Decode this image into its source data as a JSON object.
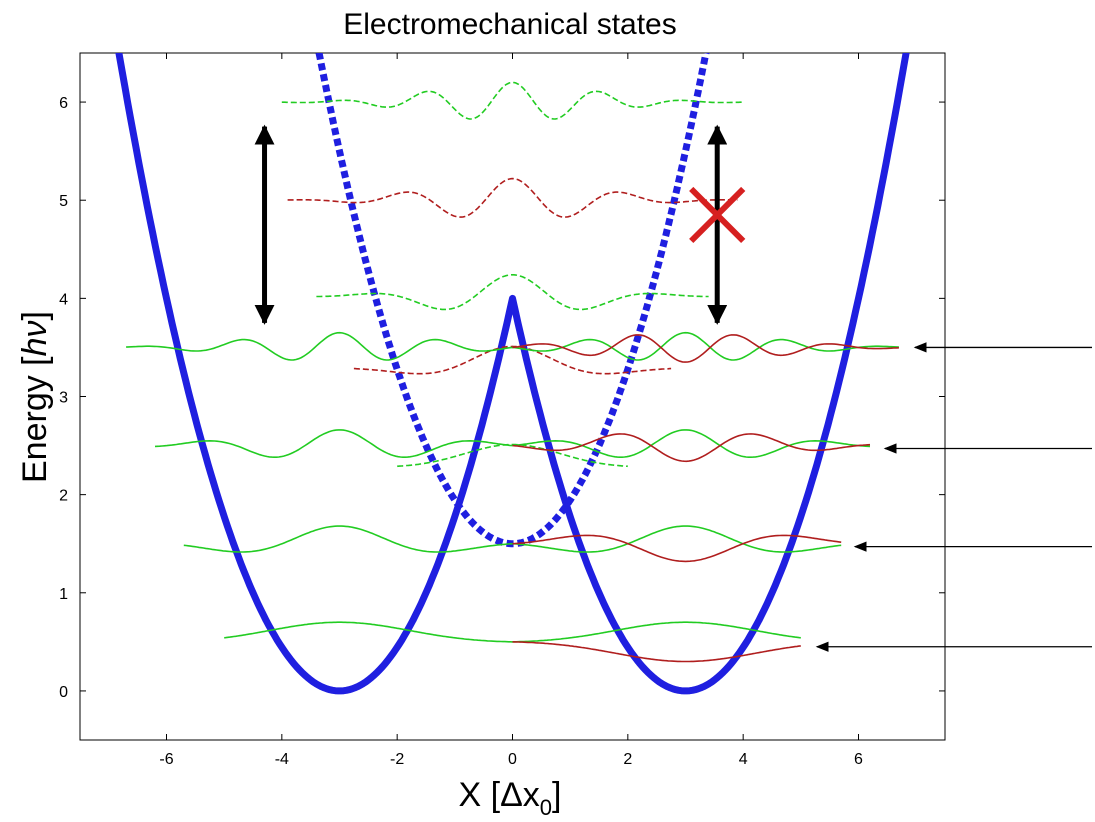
{
  "chart_data": {
    "type": "line",
    "title": "Electromechanical states",
    "xlabel": "X [Δx",
    "xlabel_sub": "0",
    "xlabel_end": "]",
    "ylabel": "Energy [",
    "ylabel_italic": "hν",
    "ylabel_end": "]",
    "xlim": [
      -7.5,
      7.5
    ],
    "ylim": [
      -0.5,
      6.5
    ],
    "x_ticks": [
      -6,
      -4,
      -2,
      0,
      2,
      4,
      6
    ],
    "y_ticks": [
      0,
      1,
      2,
      3,
      4,
      5,
      6
    ],
    "grid": false,
    "colors": {
      "potential": "#1f1fe0",
      "wave_green": "#22cc22",
      "wave_red": "#b01e1e",
      "cross": "#d62020",
      "arrow": "#000000"
    },
    "series": [
      {
        "style": "solid-thick",
        "x": [
          -7.0,
          -6.0,
          -5.0,
          -4.0,
          -3.0,
          -2.0,
          -1.0,
          -0.5,
          0.0,
          0.5,
          1.0,
          2.0,
          3.0,
          4.0,
          5.0,
          6.0,
          7.0
        ],
        "y": [
          7.11,
          4.0,
          1.78,
          0.44,
          0.0,
          0.44,
          1.78,
          2.78,
          4.0,
          2.78,
          1.78,
          0.44,
          0.0,
          0.44,
          1.78,
          4.0,
          7.11
        ]
      },
      {
        "style": "dashed-thick",
        "x": [
          -3.4,
          -3.0,
          -2.0,
          -1.0,
          0.0,
          1.0,
          2.0,
          3.0,
          3.4
        ],
        "y": [
          6.64,
          5.5,
          3.5,
          2.0,
          1.5,
          2.0,
          3.5,
          5.5,
          6.64
        ]
      }
    ],
    "annotations": {
      "double_arrows": [
        {
          "x": -4.3,
          "y1": 3.75,
          "y2": 5.75,
          "crossed": false
        },
        {
          "x": 3.55,
          "y1": 3.75,
          "y2": 5.75,
          "crossed": true,
          "cross_y": 4.85
        }
      ],
      "side_arrows_y": [
        0.45,
        1.47,
        2.47,
        3.5
      ]
    }
  }
}
